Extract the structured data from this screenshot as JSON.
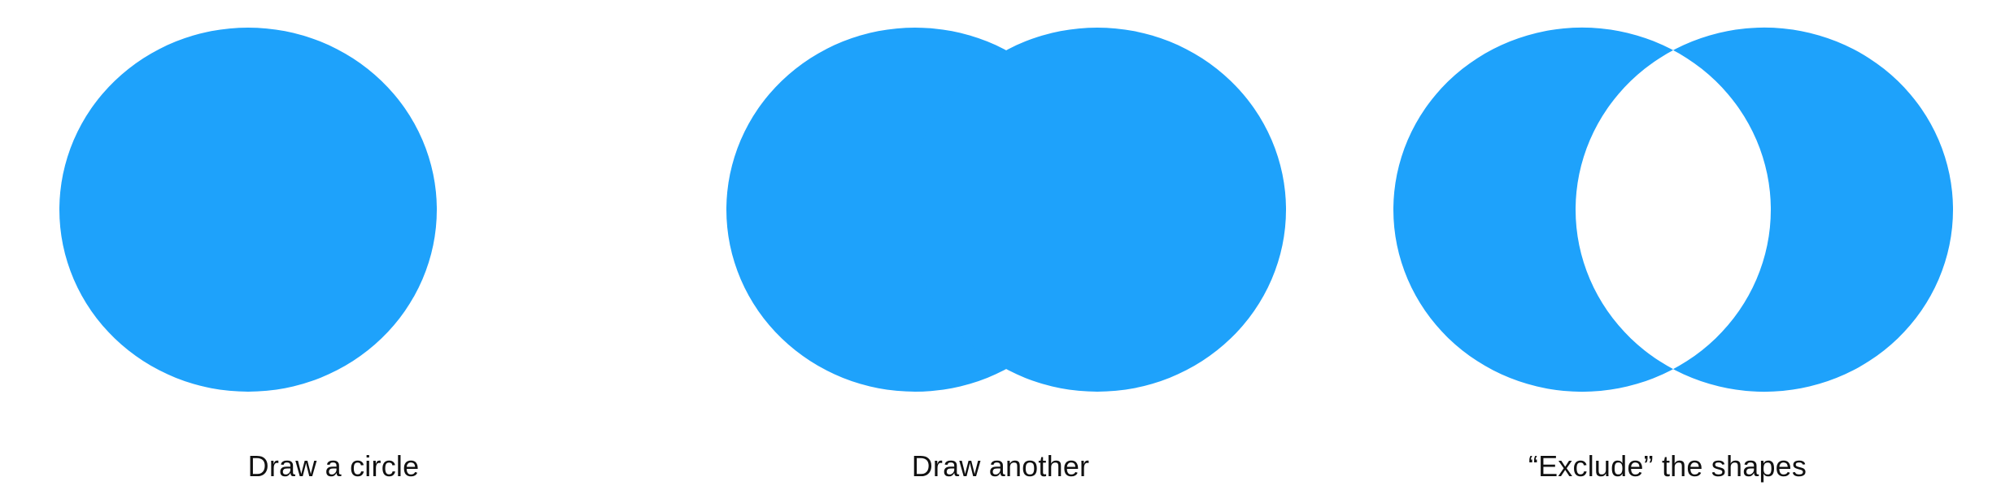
{
  "colors": {
    "shape_fill": "#1EA2FB",
    "background": "#FFFFFF",
    "caption_text": "#111111"
  },
  "steps": [
    {
      "caption": "Draw a circle"
    },
    {
      "caption": "Draw another"
    },
    {
      "caption": "“Exclude” the shapes"
    }
  ]
}
